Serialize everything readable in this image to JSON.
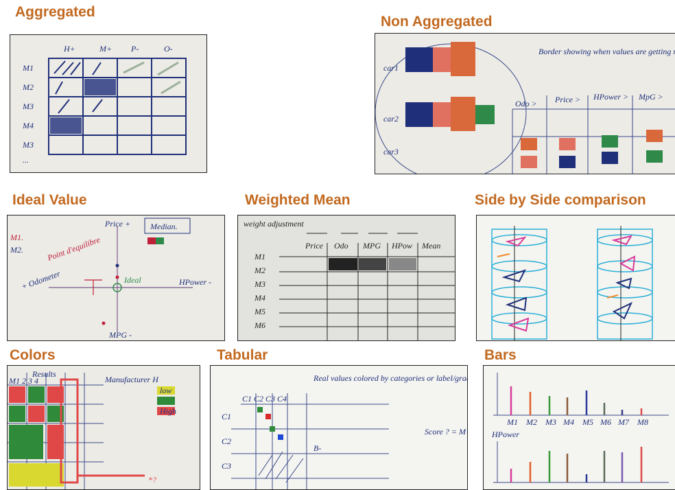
{
  "panels": [
    {
      "title": "Aggregated",
      "notes": [
        "H+",
        "M+",
        "P-",
        "O-",
        "M1",
        "M2",
        "M3",
        "M4",
        "M3",
        "..."
      ]
    },
    {
      "title": "Non Aggregated",
      "notes": [
        "car1",
        "car2",
        "car3",
        "Border showing when values are getting really interesting",
        "Odo >",
        "Price >",
        "HPower >",
        "MpG >"
      ]
    },
    {
      "title": "Ideal Value",
      "notes": [
        "Median.",
        "M1.",
        "M2.",
        "Price +",
        "Ideal",
        "HPower -",
        "MPG -",
        "Point d'equilibre",
        "+ Odometer"
      ]
    },
    {
      "title": "Weighted Mean",
      "notes": [
        "weight adjustment",
        "Price",
        "Odo",
        "MPG",
        "HPow",
        "Mean",
        "M1",
        "M2",
        "M3",
        "M4",
        "M5",
        "M6"
      ]
    },
    {
      "title": "Side by Side comparison"
    },
    {
      "title": "Colors",
      "notes": [
        "Results",
        "M1 2 3 4",
        "Manufacturer H",
        "low",
        "High",
        "*?"
      ]
    },
    {
      "title": "Tabular",
      "notes": [
        "C1 C2 C3 C4",
        "C1",
        "C2",
        "C3",
        "Real values colored by categories or label/grade letters",
        "Score ? = M+H-P-O by %",
        "B-"
      ]
    },
    {
      "title": "Bars",
      "notes": [
        "HPower",
        "M1",
        "M2",
        "M3",
        "M4",
        "M5",
        "M6",
        "M7",
        "M8"
      ]
    }
  ]
}
